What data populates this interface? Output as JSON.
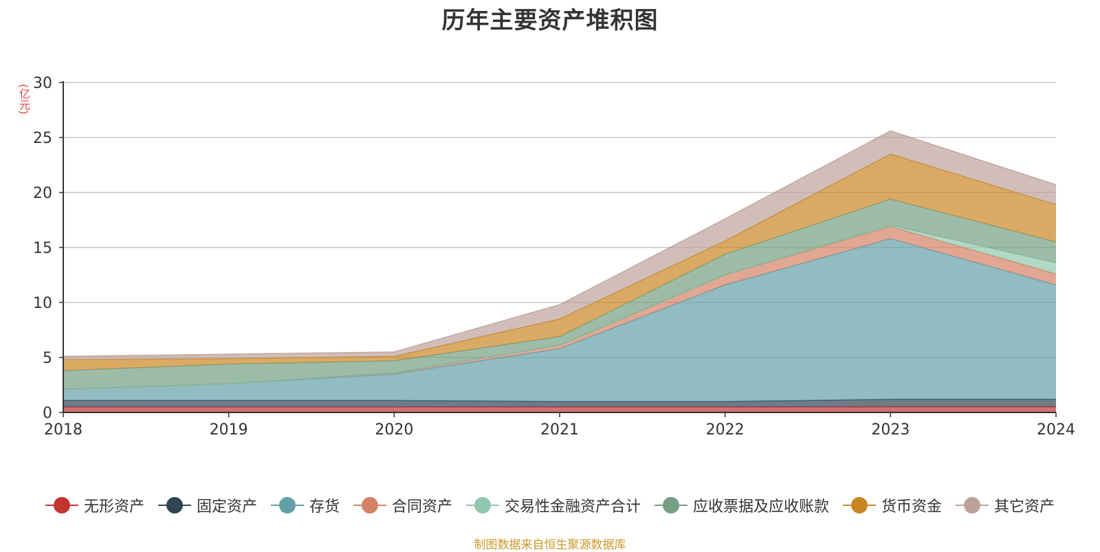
{
  "chart_data": {
    "type": "area",
    "stacked": true,
    "title": "历年主要资产堆积图",
    "ylabel": "(亿元)",
    "x": [
      "2018",
      "2019",
      "2020",
      "2021",
      "2022",
      "2023",
      "2024"
    ],
    "ylim": [
      0,
      30
    ],
    "yticks": [
      0,
      5,
      10,
      15,
      20,
      25,
      30
    ],
    "grid": true,
    "legend_position": "bottom",
    "series": [
      {
        "name": "无形资产",
        "color": "#c23531",
        "values": [
          0.5,
          0.5,
          0.5,
          0.5,
          0.5,
          0.5,
          0.5
        ]
      },
      {
        "name": "固定资产",
        "color": "#2f4554",
        "values": [
          0.6,
          0.6,
          0.6,
          0.5,
          0.5,
          0.7,
          0.7
        ]
      },
      {
        "name": "存货",
        "color": "#61a0a8",
        "values": [
          1.0,
          1.5,
          2.4,
          4.8,
          10.6,
          14.6,
          10.4
        ]
      },
      {
        "name": "合同资产",
        "color": "#d48265",
        "values": [
          0.0,
          0.0,
          0.1,
          0.3,
          0.9,
          1.1,
          1.0
        ]
      },
      {
        "name": "交易性金融资产合计",
        "color": "#91c7ae",
        "values": [
          0.0,
          0.0,
          0.0,
          0.0,
          0.0,
          0.1,
          1.0
        ]
      },
      {
        "name": "应收票据及应收账款",
        "color": "#749f83",
        "values": [
          1.7,
          1.8,
          1.1,
          0.8,
          1.9,
          2.4,
          1.9
        ]
      },
      {
        "name": "货币资金",
        "color": "#ca8622",
        "values": [
          1.0,
          0.5,
          0.4,
          1.6,
          1.2,
          4.1,
          3.4
        ]
      },
      {
        "name": "其它资产",
        "color": "#bda29a",
        "values": [
          0.3,
          0.4,
          0.4,
          1.3,
          2.0,
          2.1,
          1.8
        ]
      }
    ]
  },
  "source_note": "制图数据来自恒生聚源数据库"
}
